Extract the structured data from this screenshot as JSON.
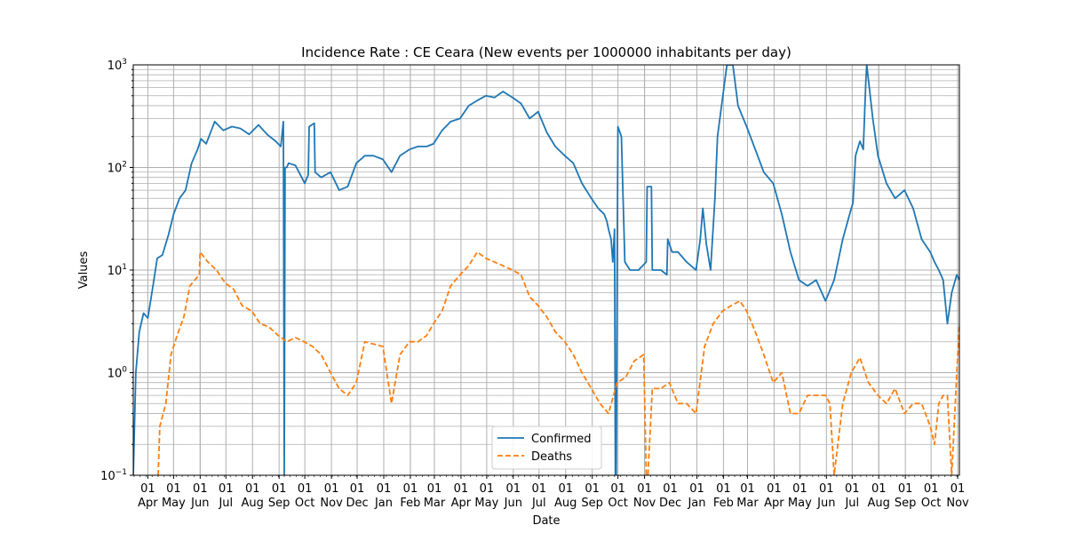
{
  "chart_data": {
    "type": "line",
    "title": "Incidence Rate : CE Ceara (New events per 1000000 inhabitants per day)",
    "xlabel": "Date",
    "ylabel": "Values",
    "yscale": "log",
    "ylim": [
      0.1,
      1000
    ],
    "y_tick_labels": [
      {
        "value": 0.1,
        "base": "10",
        "exp": "−1"
      },
      {
        "value": 1,
        "base": "10",
        "exp": "0"
      },
      {
        "value": 10,
        "base": "10",
        "exp": "1"
      },
      {
        "value": 100,
        "base": "10",
        "exp": "2"
      },
      {
        "value": 1000,
        "base": "10",
        "exp": "3"
      }
    ],
    "xlim": [
      "2020-03-15",
      "2022-11-03"
    ],
    "x_ticks": [
      {
        "date": "2020-04-01",
        "day": "01",
        "month": "Apr"
      },
      {
        "date": "2020-05-01",
        "day": "01",
        "month": "May"
      },
      {
        "date": "2020-06-01",
        "day": "01",
        "month": "Jun"
      },
      {
        "date": "2020-07-01",
        "day": "01",
        "month": "Jul"
      },
      {
        "date": "2020-08-01",
        "day": "01",
        "month": "Aug"
      },
      {
        "date": "2020-09-01",
        "day": "01",
        "month": "Sep"
      },
      {
        "date": "2020-10-01",
        "day": "01",
        "month": "Oct"
      },
      {
        "date": "2020-11-01",
        "day": "01",
        "month": "Nov"
      },
      {
        "date": "2020-12-01",
        "day": "01",
        "month": "Dec"
      },
      {
        "date": "2021-01-01",
        "day": "01",
        "month": "Jan"
      },
      {
        "date": "2021-02-01",
        "day": "01",
        "month": "Feb"
      },
      {
        "date": "2021-03-01",
        "day": "01",
        "month": "Mar"
      },
      {
        "date": "2021-04-01",
        "day": "01",
        "month": "Apr"
      },
      {
        "date": "2021-05-01",
        "day": "01",
        "month": "May"
      },
      {
        "date": "2021-06-01",
        "day": "01",
        "month": "Jun"
      },
      {
        "date": "2021-07-01",
        "day": "01",
        "month": "Jul"
      },
      {
        "date": "2021-08-01",
        "day": "01",
        "month": "Aug"
      },
      {
        "date": "2021-09-01",
        "day": "01",
        "month": "Sep"
      },
      {
        "date": "2021-10-01",
        "day": "01",
        "month": "Oct"
      },
      {
        "date": "2021-11-01",
        "day": "01",
        "month": "Nov"
      },
      {
        "date": "2021-12-01",
        "day": "01",
        "month": "Dec"
      },
      {
        "date": "2022-01-01",
        "day": "01",
        "month": "Jan"
      },
      {
        "date": "2022-02-01",
        "day": "01",
        "month": "Feb"
      },
      {
        "date": "2022-03-01",
        "day": "01",
        "month": "Mar"
      },
      {
        "date": "2022-04-01",
        "day": "01",
        "month": "Apr"
      },
      {
        "date": "2022-05-01",
        "day": "01",
        "month": "May"
      },
      {
        "date": "2022-06-01",
        "day": "01",
        "month": "Jun"
      },
      {
        "date": "2022-07-01",
        "day": "01",
        "month": "Jul"
      },
      {
        "date": "2022-08-01",
        "day": "01",
        "month": "Aug"
      },
      {
        "date": "2022-09-01",
        "day": "01",
        "month": "Sep"
      },
      {
        "date": "2022-10-01",
        "day": "01",
        "month": "Oct"
      },
      {
        "date": "2022-11-01",
        "day": "01",
        "month": "Nov"
      }
    ],
    "grid": true,
    "legend_position": "bottom-center",
    "series": [
      {
        "name": "Confirmed",
        "color": "#1f77b4",
        "style": "solid",
        "x": [
          "2020-03-15",
          "2020-03-18",
          "2020-03-22",
          "2020-03-27",
          "2020-04-01",
          "2020-04-07",
          "2020-04-12",
          "2020-04-18",
          "2020-04-25",
          "2020-05-01",
          "2020-05-08",
          "2020-05-15",
          "2020-05-22",
          "2020-05-29",
          "2020-06-02",
          "2020-06-08",
          "2020-06-18",
          "2020-06-28",
          "2020-07-08",
          "2020-07-18",
          "2020-07-28",
          "2020-08-08",
          "2020-08-18",
          "2020-08-28",
          "2020-09-03",
          "2020-09-06",
          "2020-09-07",
          "2020-09-08",
          "2020-09-10",
          "2020-09-12",
          "2020-09-20",
          "2020-10-01",
          "2020-10-05",
          "2020-10-06",
          "2020-10-12",
          "2020-10-13",
          "2020-10-20",
          "2020-10-31",
          "2020-11-10",
          "2020-11-20",
          "2020-11-30",
          "2020-12-10",
          "2020-12-20",
          "2020-12-31",
          "2021-01-10",
          "2021-01-20",
          "2021-01-31",
          "2021-02-10",
          "2021-02-20",
          "2021-02-28",
          "2021-03-10",
          "2021-03-20",
          "2021-03-31",
          "2021-04-10",
          "2021-04-20",
          "2021-04-30",
          "2021-05-10",
          "2021-05-20",
          "2021-05-31",
          "2021-06-10",
          "2021-06-20",
          "2021-06-30",
          "2021-07-10",
          "2021-07-20",
          "2021-07-31",
          "2021-08-10",
          "2021-08-20",
          "2021-08-31",
          "2021-09-08",
          "2021-09-15",
          "2021-09-18",
          "2021-09-20",
          "2021-09-23",
          "2021-09-25",
          "2021-09-27",
          "2021-09-28",
          "2021-09-29",
          "2021-09-30",
          "2021-10-01",
          "2021-10-05",
          "2021-10-09",
          "2021-10-15",
          "2021-10-25",
          "2021-11-03",
          "2021-11-04",
          "2021-11-08",
          "2021-11-09",
          "2021-11-10",
          "2021-11-20",
          "2021-11-27",
          "2021-11-28",
          "2021-12-03",
          "2021-12-10",
          "2021-12-20",
          "2021-12-31",
          "2022-01-05",
          "2022-01-08",
          "2022-01-12",
          "2022-01-17",
          "2022-01-22",
          "2022-01-25",
          "2022-02-05",
          "2022-02-12",
          "2022-02-18",
          "2022-02-28",
          "2022-03-10",
          "2022-03-20",
          "2022-03-31",
          "2022-04-10",
          "2022-04-20",
          "2022-04-30",
          "2022-05-10",
          "2022-05-20",
          "2022-05-31",
          "2022-06-10",
          "2022-06-20",
          "2022-06-30",
          "2022-07-02",
          "2022-07-05",
          "2022-07-10",
          "2022-07-14",
          "2022-07-17",
          "2022-07-18",
          "2022-07-25",
          "2022-07-31",
          "2022-08-10",
          "2022-08-20",
          "2022-08-31",
          "2022-09-10",
          "2022-09-20",
          "2022-09-30",
          "2022-10-05",
          "2022-10-10",
          "2022-10-15",
          "2022-10-20",
          "2022-10-25",
          "2022-10-31",
          "2022-11-03"
        ],
        "y": [
          0.1,
          1.0,
          2.5,
          3.8,
          3.4,
          7.0,
          13.0,
          14.0,
          22.0,
          35.0,
          50.0,
          60.0,
          110.0,
          150.0,
          190.0,
          170.0,
          280.0,
          230.0,
          250.0,
          240.0,
          210.0,
          260.0,
          210.0,
          180.0,
          160.0,
          280.0,
          0.1,
          100.0,
          100.0,
          110.0,
          105.0,
          70.0,
          85.0,
          250.0,
          270.0,
          90.0,
          80.0,
          90.0,
          60.0,
          65.0,
          110.0,
          130.0,
          130.0,
          120.0,
          90.0,
          130.0,
          150.0,
          160.0,
          160.0,
          170.0,
          230.0,
          280.0,
          300.0,
          400.0,
          450.0,
          500.0,
          480.0,
          550.0,
          480.0,
          420.0,
          300.0,
          350.0,
          220.0,
          160.0,
          130.0,
          110.0,
          70.0,
          50.0,
          40.0,
          35.0,
          30.0,
          25.0,
          20.0,
          12.0,
          25.0,
          0.1,
          0.1,
          10.0,
          250.0,
          200.0,
          12.0,
          10.0,
          10.0,
          12.0,
          65.0,
          65.0,
          65.0,
          10.0,
          10.0,
          9.0,
          20.0,
          15.0,
          15.0,
          12.0,
          10.0,
          20.0,
          40.0,
          18.0,
          10.0,
          50.0,
          200.0,
          1000.0,
          1000.0,
          400.0,
          250.0,
          150.0,
          90.0,
          70.0,
          35.0,
          15.0,
          8.0,
          7.0,
          8.0,
          5.0,
          8.0,
          20.0,
          40.0,
          45.0,
          130.0,
          180.0,
          150.0,
          700.0,
          1000.0,
          300.0,
          130.0,
          70.0,
          50.0,
          60.0,
          40.0,
          20.0,
          15.0,
          12.0,
          10.0,
          8.0,
          3.0,
          6.0,
          9.0,
          8.0
        ]
      },
      {
        "name": "Deaths",
        "color": "#ff7f0e",
        "style": "dashed",
        "x": [
          "2020-04-13",
          "2020-04-15",
          "2020-04-22",
          "2020-04-28",
          "2020-05-05",
          "2020-05-13",
          "2020-05-20",
          "2020-05-31",
          "2020-06-01",
          "2020-06-10",
          "2020-06-20",
          "2020-06-30",
          "2020-07-10",
          "2020-07-20",
          "2020-07-31",
          "2020-08-10",
          "2020-08-20",
          "2020-08-31",
          "2020-09-10",
          "2020-09-20",
          "2020-09-30",
          "2020-10-10",
          "2020-10-20",
          "2020-10-31",
          "2020-11-10",
          "2020-11-20",
          "2020-11-30",
          "2020-12-10",
          "2020-12-20",
          "2020-12-31",
          "2021-01-10",
          "2021-01-20",
          "2021-01-31",
          "2021-02-10",
          "2021-02-20",
          "2021-02-28",
          "2021-03-10",
          "2021-03-20",
          "2021-03-31",
          "2021-04-10",
          "2021-04-20",
          "2021-04-30",
          "2021-05-10",
          "2021-05-20",
          "2021-05-31",
          "2021-06-10",
          "2021-06-20",
          "2021-06-30",
          "2021-07-10",
          "2021-07-20",
          "2021-07-31",
          "2021-08-10",
          "2021-08-20",
          "2021-08-31",
          "2021-09-10",
          "2021-09-20",
          "2021-09-30",
          "2021-10-10",
          "2021-10-20",
          "2021-10-31",
          "2021-11-03",
          "2021-11-05",
          "2021-11-06",
          "2021-11-10",
          "2021-11-20",
          "2021-11-30",
          "2021-12-10",
          "2021-12-20",
          "2021-12-31",
          "2022-01-10",
          "2022-01-20",
          "2022-01-31",
          "2022-02-10",
          "2022-02-20",
          "2022-02-28",
          "2022-03-10",
          "2022-03-20",
          "2022-03-31",
          "2022-04-10",
          "2022-04-20",
          "2022-04-30",
          "2022-05-10",
          "2022-05-20",
          "2022-05-31",
          "2022-06-05",
          "2022-06-10",
          "2022-06-20",
          "2022-06-30",
          "2022-07-10",
          "2022-07-20",
          "2022-07-31",
          "2022-08-10",
          "2022-08-20",
          "2022-08-31",
          "2022-09-10",
          "2022-09-20",
          "2022-09-30",
          "2022-10-05",
          "2022-10-10",
          "2022-10-15",
          "2022-10-20",
          "2022-10-25",
          "2022-10-31",
          "2022-11-03"
        ],
        "y": [
          0.1,
          0.3,
          0.5,
          1.5,
          2.3,
          3.5,
          7.0,
          9.0,
          15.0,
          12.0,
          10.0,
          7.5,
          6.5,
          4.5,
          4.0,
          3.0,
          2.8,
          2.3,
          2.0,
          2.2,
          2.0,
          1.8,
          1.5,
          1.0,
          0.7,
          0.6,
          0.8,
          2.0,
          1.9,
          1.8,
          0.5,
          1.5,
          2.0,
          2.0,
          2.3,
          3.0,
          4.0,
          7.0,
          9.0,
          11.0,
          15.0,
          13.0,
          12.0,
          11.0,
          10.0,
          9.0,
          5.5,
          4.5,
          3.5,
          2.5,
          2.0,
          1.5,
          1.0,
          0.7,
          0.5,
          0.4,
          0.8,
          0.9,
          1.3,
          1.5,
          0.1,
          0.1,
          0.15,
          0.7,
          0.7,
          0.8,
          0.5,
          0.5,
          0.4,
          1.8,
          3.0,
          4.0,
          4.5,
          5.0,
          4.0,
          2.5,
          1.5,
          0.8,
          1.0,
          0.4,
          0.4,
          0.6,
          0.6,
          0.6,
          0.5,
          0.1,
          0.5,
          1.0,
          1.4,
          0.8,
          0.6,
          0.5,
          0.7,
          0.4,
          0.5,
          0.5,
          0.3,
          0.2,
          0.5,
          0.6,
          0.6,
          0.1,
          1.0,
          3.0
        ]
      }
    ]
  }
}
